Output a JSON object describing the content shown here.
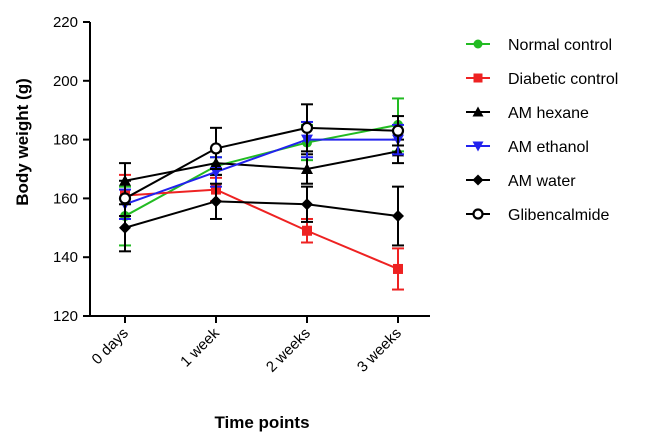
{
  "chart_data": {
    "type": "line",
    "xlabel": "Time points",
    "ylabel": "Body weight (g)",
    "categories": [
      "0 days",
      "1 week",
      "2 weeks",
      "3 weeks"
    ],
    "ylim": [
      120,
      220
    ],
    "yticks": [
      120,
      140,
      160,
      180,
      200,
      220
    ],
    "legend_position": "right",
    "grid": false,
    "series": [
      {
        "name": "Normal control",
        "color": "#22bb22",
        "marker": "circle",
        "values": [
          154,
          171,
          179,
          185
        ],
        "errors": [
          10,
          3,
          6,
          9
        ]
      },
      {
        "name": "Diabetic control",
        "color": "#ee2222",
        "marker": "square",
        "values": [
          161,
          163,
          149,
          136
        ],
        "errors": [
          7,
          4,
          4,
          7
        ]
      },
      {
        "name": "AM hexane",
        "color": "#000000",
        "marker": "triangle-up",
        "values": [
          166,
          172,
          170,
          176
        ],
        "errors": [
          6,
          4,
          5,
          4
        ]
      },
      {
        "name": "AM ethanol",
        "color": "#2222ee",
        "marker": "triangle-down",
        "values": [
          158,
          169,
          180,
          180
        ],
        "errors": [
          5,
          5,
          6,
          5
        ]
      },
      {
        "name": "AM water",
        "color": "#000000",
        "marker": "diamond",
        "values": [
          150,
          159,
          158,
          154
        ],
        "errors": [
          8,
          6,
          6,
          10
        ]
      },
      {
        "name": "Glibencalmide",
        "color": "#000000",
        "marker": "open-circle",
        "values": [
          160,
          177,
          184,
          183
        ],
        "errors": [
          6,
          7,
          8,
          5
        ]
      }
    ]
  }
}
